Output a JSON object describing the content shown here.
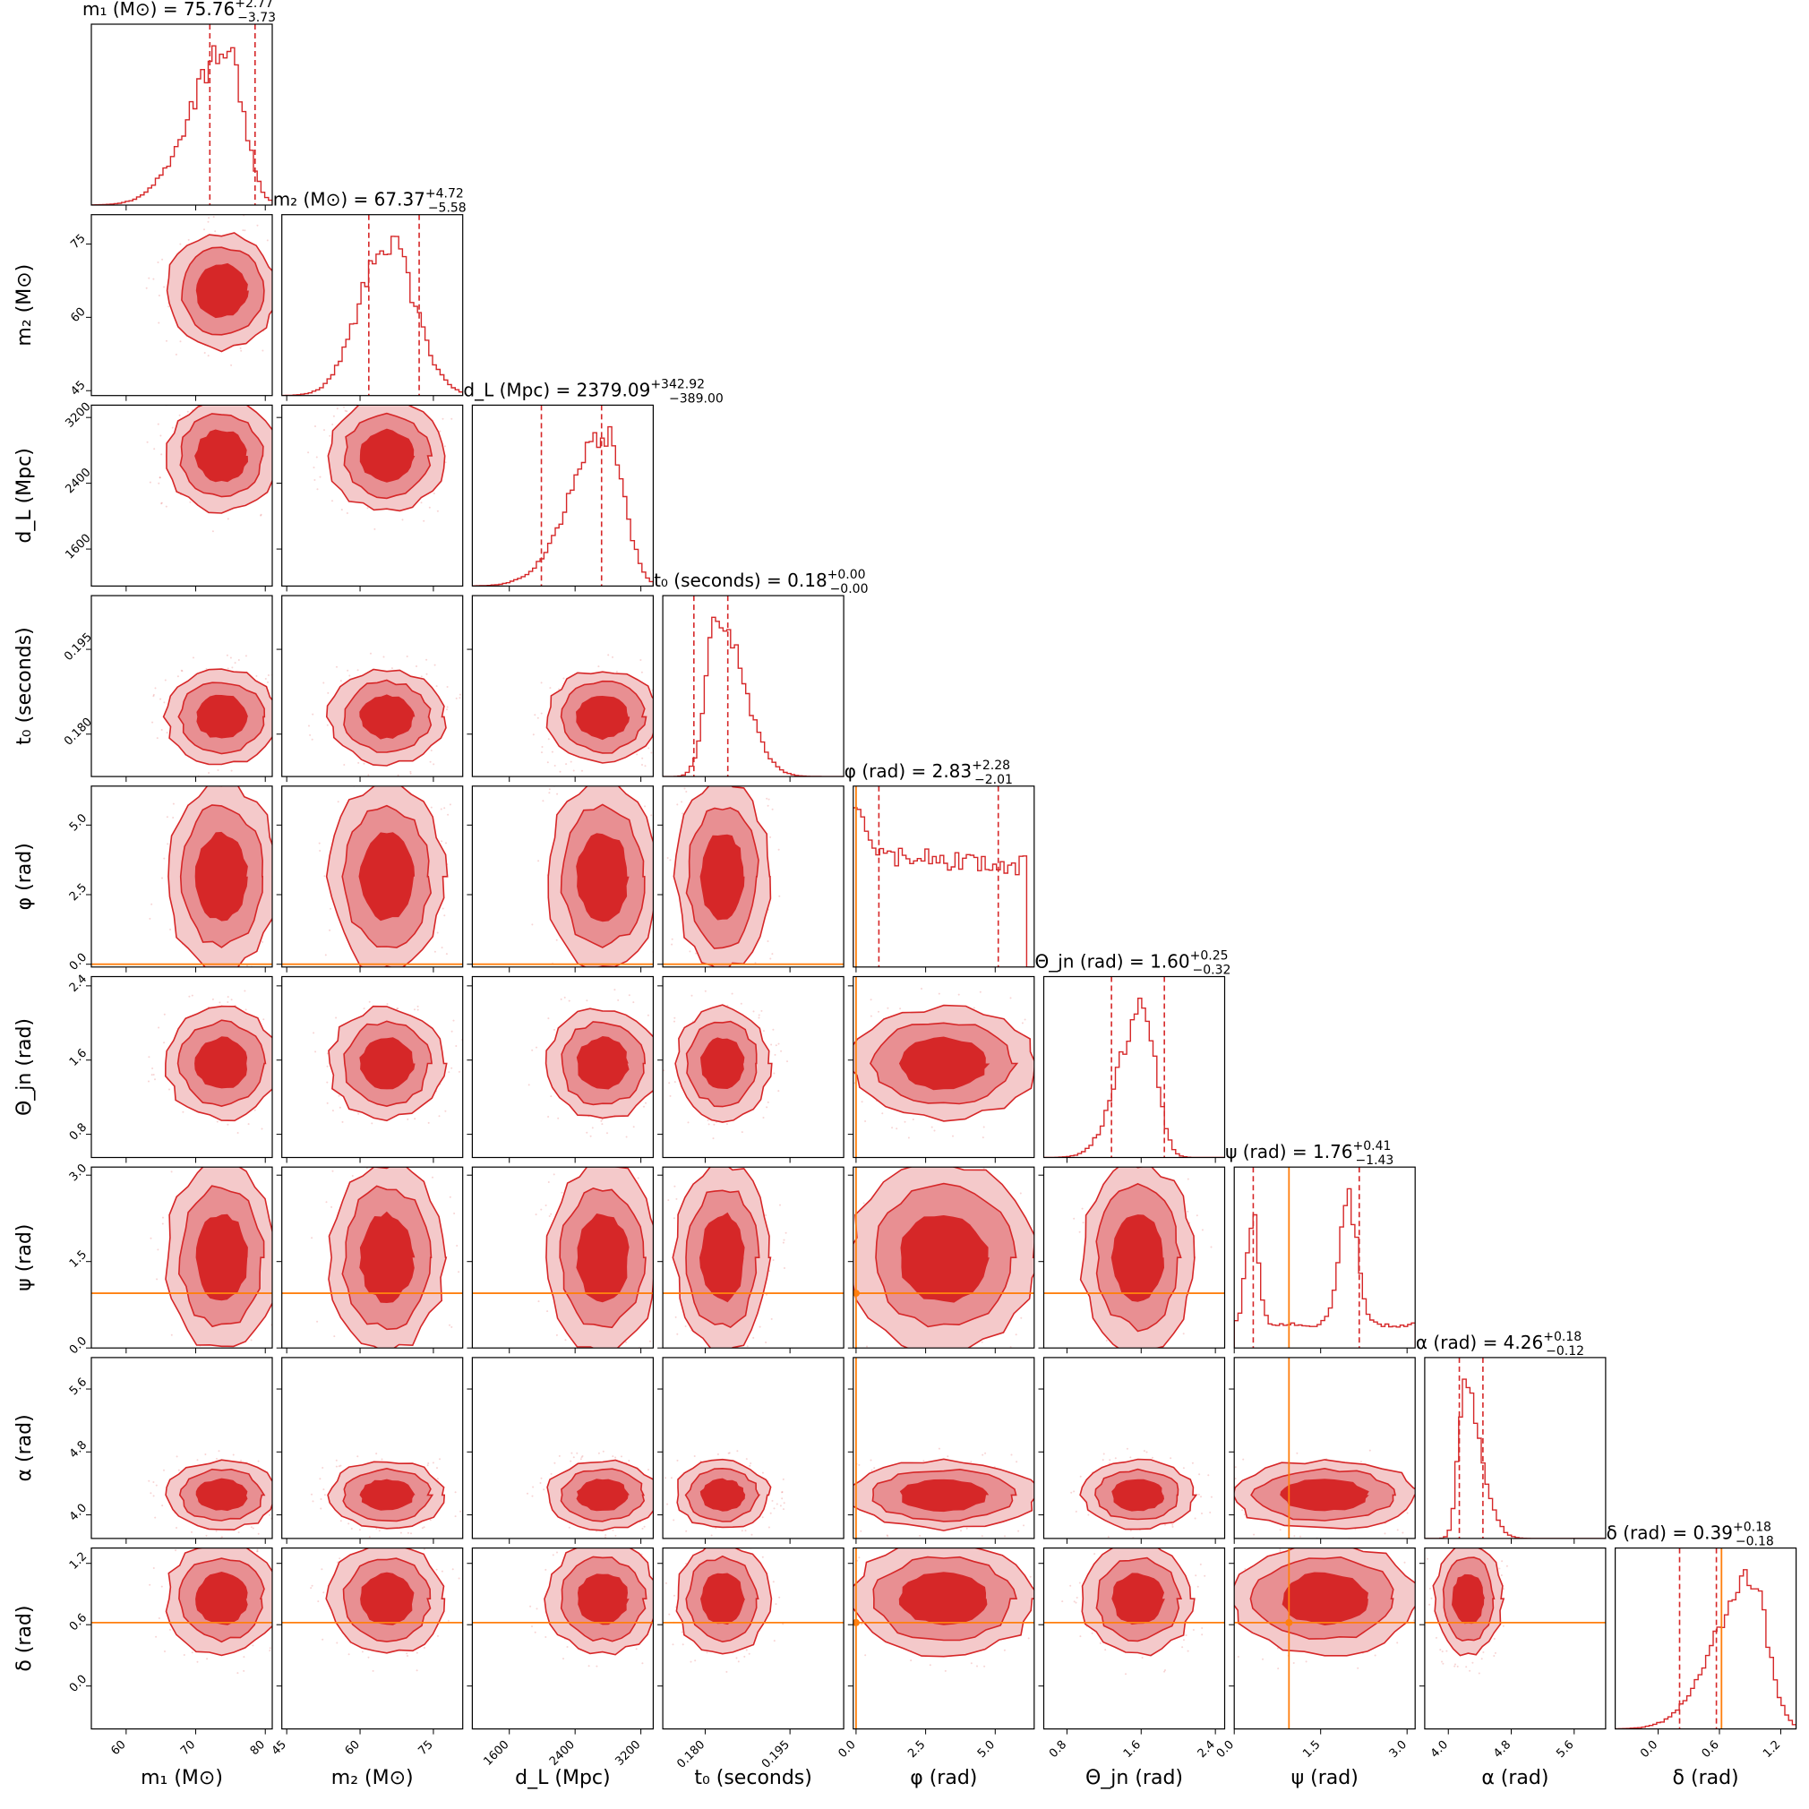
{
  "chart_data": {
    "type": "corner",
    "colors": {
      "posterior": "#d62728",
      "truth": "#ff7f0e",
      "frame": "#000000"
    },
    "parameters": [
      {
        "key": "m1",
        "axis_label": "m₁ (M⊙)",
        "title": "m₁ (M⊙) = 75.76",
        "median": "75.76",
        "err_plus": "+2.77",
        "err_minus": "−3.73",
        "range": [
          55,
          81
        ],
        "ticks": [
          60,
          70,
          80
        ],
        "tick_labels": [
          "60",
          "70",
          "80"
        ],
        "q_lo": 72.03,
        "q_hi": 78.53,
        "truth": null,
        "shape": "skewleft"
      },
      {
        "key": "m2",
        "axis_label": "m₂ (M⊙)",
        "title": "m₂ (M⊙) = 67.37",
        "median": "67.37",
        "err_plus": "+4.72",
        "err_minus": "−5.58",
        "range": [
          44,
          81
        ],
        "ticks": [
          45,
          60,
          75
        ],
        "tick_labels": [
          "45",
          "60",
          "75"
        ],
        "q_lo": 61.79,
        "q_hi": 72.09,
        "truth": null,
        "shape": "normal"
      },
      {
        "key": "dL",
        "axis_label": "d_L (Mpc)",
        "title": "d_L (Mpc) = 2379.09",
        "median": "2379.09",
        "err_plus": "+342.92",
        "err_minus": "−389.00",
        "range": [
          1150,
          3350
        ],
        "ticks": [
          1600,
          2400,
          3200
        ],
        "tick_labels": [
          "1600",
          "2400",
          "3200"
        ],
        "q_lo": 1990.09,
        "q_hi": 2722.01,
        "truth": null,
        "shape": "skewleft"
      },
      {
        "key": "t0",
        "axis_label": "t₀ (seconds)",
        "title": "t₀ (seconds) = 0.18",
        "median": "0.18",
        "err_plus": "+0.00",
        "err_minus": "−0.00",
        "range": [
          0.1725,
          0.2045
        ],
        "ticks": [
          0.18,
          0.195
        ],
        "tick_labels": [
          "0.180",
          "0.195"
        ],
        "q_lo": 0.178,
        "q_hi": 0.184,
        "truth": null,
        "shape": "skewright"
      },
      {
        "key": "phi",
        "axis_label": "φ (rad)",
        "title": "φ (rad) = 2.83",
        "median": "2.83",
        "err_plus": "+2.28",
        "err_minus": "−2.01",
        "range": [
          -0.1,
          6.4
        ],
        "ticks": [
          0.0,
          2.5,
          5.0
        ],
        "tick_labels": [
          "0.0",
          "2.5",
          "5.0"
        ],
        "q_lo": 0.82,
        "q_hi": 5.11,
        "truth": 0.0,
        "shape": "flat"
      },
      {
        "key": "theta",
        "axis_label": "Θ_jn (rad)",
        "title": "Θ_jn (rad) = 1.60",
        "median": "1.60",
        "err_plus": "+0.25",
        "err_minus": "−0.32",
        "range": [
          0.55,
          2.5
        ],
        "ticks": [
          0.8,
          1.6,
          2.4
        ],
        "tick_labels": [
          "0.8",
          "1.6",
          "2.4"
        ],
        "q_lo": 1.28,
        "q_hi": 1.85,
        "truth": null,
        "shape": "peaked"
      },
      {
        "key": "psi",
        "axis_label": "ψ (rad)",
        "title": "ψ (rad) = 1.76",
        "median": "1.76",
        "err_plus": "+0.41",
        "err_minus": "−1.43",
        "range": [
          0.0,
          3.14
        ],
        "ticks": [
          0.0,
          1.5,
          3.0
        ],
        "tick_labels": [
          "0.0",
          "1.5",
          "3.0"
        ],
        "q_lo": 0.33,
        "q_hi": 2.17,
        "truth": 0.95,
        "shape": "bimodal"
      },
      {
        "key": "alpha",
        "axis_label": "α (rad)",
        "title": "α (rad) = 4.26",
        "median": "4.26",
        "err_plus": "+0.18",
        "err_minus": "−0.12",
        "range": [
          3.7,
          6.0
        ],
        "ticks": [
          4.0,
          4.8,
          5.6
        ],
        "tick_labels": [
          "4.0",
          "4.8",
          "5.6"
        ],
        "q_lo": 4.14,
        "q_hi": 4.44,
        "truth": null,
        "shape": "narrowright"
      },
      {
        "key": "delta",
        "axis_label": "δ (rad)",
        "title": "δ (rad) = 0.39",
        "median": "0.39",
        "err_plus": "+0.18",
        "err_minus": "−0.18",
        "range": [
          -0.42,
          1.35
        ],
        "ticks": [
          0.0,
          0.6,
          1.2
        ],
        "tick_labels": [
          "0.0",
          "0.6",
          "1.2"
        ],
        "q_lo": 0.21,
        "q_hi": 0.57,
        "truth": 0.62,
        "shape": "skewleft"
      }
    ],
    "contour_levels": [
      "1σ",
      "2σ",
      "3σ"
    ],
    "grid": false,
    "legend": "none"
  }
}
